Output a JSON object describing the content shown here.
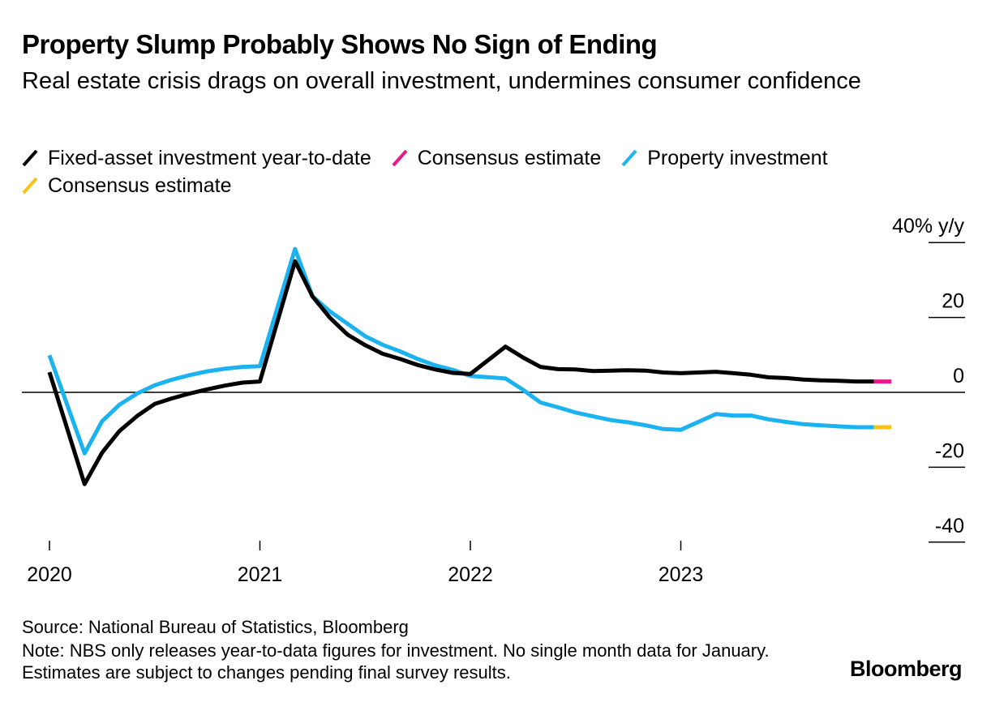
{
  "header": {
    "title": "Property Slump Probably Shows No Sign of Ending",
    "subtitle": "Real estate crisis drags on overall investment, undermines consumer confidence"
  },
  "legend": [
    {
      "label": "Fixed-asset investment year-to-date",
      "color": "#000000"
    },
    {
      "label": "Consensus estimate",
      "color": "#e8198b"
    },
    {
      "label": "Property investment",
      "color": "#1bb2f0"
    },
    {
      "label": "Consensus estimate",
      "color": "#f7c21b"
    }
  ],
  "footer": {
    "source": "Source: National Bureau of Statistics, Bloomberg",
    "note": "Note: NBS only releases year-to-data figures for investment. No single month data for January. Estimates are subject to changes pending final survey results.",
    "brand": "Bloomberg"
  },
  "chart_data": {
    "type": "line",
    "title": "Property Slump Probably Shows No Sign of Ending",
    "ylabel": "% y/y",
    "ylim": [
      -40,
      40
    ],
    "y_ticks": [
      40,
      20,
      0,
      -20,
      -40
    ],
    "y_tick_labels": [
      "40% y/y",
      "20",
      "0",
      "-20",
      "-40"
    ],
    "x_ticks": [
      2020,
      2021,
      2022,
      2023
    ],
    "x_tick_labels": [
      "2020",
      "2021",
      "2022",
      "2023"
    ],
    "xlim": [
      2020,
      2024.0
    ],
    "series": [
      {
        "name": "Fixed-asset investment year-to-date",
        "color": "#000000",
        "points": [
          [
            2020.0,
            5.4
          ],
          [
            2020.167,
            -24.5
          ],
          [
            2020.25,
            -16.1
          ],
          [
            2020.333,
            -10.3
          ],
          [
            2020.417,
            -6.3
          ],
          [
            2020.5,
            -3.1
          ],
          [
            2020.583,
            -1.6
          ],
          [
            2020.667,
            -0.3
          ],
          [
            2020.75,
            0.8
          ],
          [
            2020.833,
            1.8
          ],
          [
            2020.917,
            2.6
          ],
          [
            2021.0,
            2.9
          ],
          [
            2021.167,
            35.0
          ],
          [
            2021.25,
            25.6
          ],
          [
            2021.333,
            19.9
          ],
          [
            2021.417,
            15.4
          ],
          [
            2021.5,
            12.6
          ],
          [
            2021.583,
            10.3
          ],
          [
            2021.667,
            8.9
          ],
          [
            2021.75,
            7.3
          ],
          [
            2021.833,
            6.1
          ],
          [
            2021.917,
            5.2
          ],
          [
            2022.0,
            4.9
          ],
          [
            2022.167,
            12.2
          ],
          [
            2022.25,
            9.3
          ],
          [
            2022.333,
            6.8
          ],
          [
            2022.417,
            6.2
          ],
          [
            2022.5,
            6.1
          ],
          [
            2022.583,
            5.7
          ],
          [
            2022.667,
            5.8
          ],
          [
            2022.75,
            5.9
          ],
          [
            2022.833,
            5.8
          ],
          [
            2022.917,
            5.3
          ],
          [
            2023.0,
            5.1
          ],
          [
            2023.167,
            5.5
          ],
          [
            2023.25,
            5.1
          ],
          [
            2023.333,
            4.7
          ],
          [
            2023.417,
            4.0
          ],
          [
            2023.5,
            3.8
          ],
          [
            2023.583,
            3.4
          ],
          [
            2023.667,
            3.2
          ],
          [
            2023.75,
            3.1
          ],
          [
            2023.833,
            2.9
          ],
          [
            2023.917,
            2.9
          ]
        ]
      },
      {
        "name": "Consensus estimate",
        "color": "#e8198b",
        "points": [
          [
            2023.917,
            2.9
          ],
          [
            2024.0,
            2.9
          ]
        ]
      },
      {
        "name": "Property investment",
        "color": "#1bb2f0",
        "points": [
          [
            2020.0,
            9.9
          ],
          [
            2020.167,
            -16.3
          ],
          [
            2020.25,
            -7.7
          ],
          [
            2020.333,
            -3.3
          ],
          [
            2020.417,
            -0.3
          ],
          [
            2020.5,
            1.9
          ],
          [
            2020.583,
            3.4
          ],
          [
            2020.667,
            4.6
          ],
          [
            2020.75,
            5.6
          ],
          [
            2020.833,
            6.3
          ],
          [
            2020.917,
            6.8
          ],
          [
            2021.0,
            7.0
          ],
          [
            2021.167,
            38.3
          ],
          [
            2021.25,
            25.6
          ],
          [
            2021.333,
            21.6
          ],
          [
            2021.417,
            18.3
          ],
          [
            2021.5,
            15.0
          ],
          [
            2021.583,
            12.7
          ],
          [
            2021.667,
            10.9
          ],
          [
            2021.75,
            8.9
          ],
          [
            2021.833,
            7.2
          ],
          [
            2021.917,
            6.0
          ],
          [
            2022.0,
            4.4
          ],
          [
            2022.167,
            3.7
          ],
          [
            2022.25,
            0.7
          ],
          [
            2022.333,
            -2.7
          ],
          [
            2022.417,
            -4.0
          ],
          [
            2022.5,
            -5.4
          ],
          [
            2022.583,
            -6.4
          ],
          [
            2022.667,
            -7.4
          ],
          [
            2022.75,
            -8.0
          ],
          [
            2022.833,
            -8.8
          ],
          [
            2022.917,
            -9.8
          ],
          [
            2023.0,
            -10.0
          ],
          [
            2023.167,
            -5.8
          ],
          [
            2023.25,
            -6.2
          ],
          [
            2023.333,
            -6.2
          ],
          [
            2023.417,
            -7.2
          ],
          [
            2023.5,
            -7.9
          ],
          [
            2023.583,
            -8.5
          ],
          [
            2023.667,
            -8.8
          ],
          [
            2023.75,
            -9.1
          ],
          [
            2023.833,
            -9.3
          ],
          [
            2023.917,
            -9.3
          ]
        ]
      },
      {
        "name": "Consensus estimate",
        "color": "#f7c21b",
        "points": [
          [
            2023.917,
            -9.3
          ],
          [
            2024.0,
            -9.3
          ]
        ]
      }
    ]
  }
}
